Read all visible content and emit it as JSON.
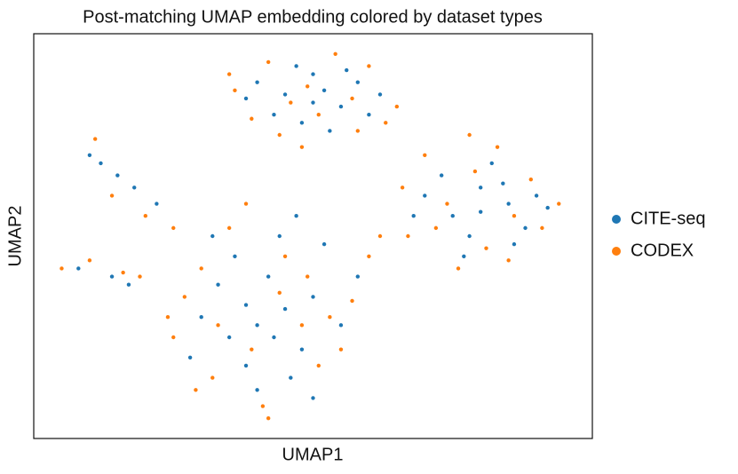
{
  "chart_data": {
    "type": "scatter",
    "title": "Post-matching UMAP embedding colored by dataset types",
    "xlabel": "UMAP1",
    "ylabel": "UMAP2",
    "xlim": [
      0,
      100
    ],
    "ylim": [
      0,
      100
    ],
    "series": [
      {
        "name": "CITE-seq",
        "color": "#1f77b4",
        "x": [
          40,
          45,
          50,
          55,
          48,
          52,
          58,
          43,
          60,
          47,
          53,
          38,
          62,
          50,
          56,
          70,
          75,
          80,
          85,
          78,
          82,
          88,
          73,
          90,
          77,
          84,
          80,
          68,
          92,
          86,
          30,
          35,
          40,
          45,
          50,
          38,
          42,
          48,
          33,
          55,
          40,
          36,
          44,
          52,
          28,
          46,
          58,
          38,
          43,
          50,
          32,
          47,
          12,
          15,
          18,
          22,
          10,
          8,
          14,
          17
        ],
        "y": [
          88,
          85,
          90,
          82,
          78,
          86,
          88,
          80,
          80,
          92,
          76,
          84,
          85,
          83,
          91,
          60,
          55,
          62,
          58,
          50,
          68,
          52,
          65,
          60,
          45,
          63,
          56,
          55,
          57,
          48,
          30,
          25,
          28,
          32,
          35,
          18,
          40,
          22,
          38,
          28,
          12,
          45,
          50,
          48,
          20,
          15,
          40,
          33,
          25,
          10,
          50,
          55,
          68,
          65,
          62,
          58,
          70,
          42,
          40,
          38
        ]
      },
      {
        "name": "CODEX",
        "color": "#ff7f0e",
        "x": [
          35,
          42,
          49,
          57,
          63,
          44,
          51,
          39,
          60,
          46,
          54,
          36,
          65,
          48,
          58,
          66,
          72,
          79,
          86,
          94,
          76,
          83,
          70,
          89,
          74,
          81,
          91,
          67,
          78,
          85,
          25,
          32,
          39,
          44,
          53,
          27,
          41,
          48,
          35,
          57,
          60,
          30,
          45,
          51,
          24,
          38,
          42,
          55,
          33,
          49,
          62,
          29,
          11,
          14,
          20,
          25,
          5,
          10,
          16,
          19
        ],
        "y": [
          90,
          93,
          87,
          84,
          78,
          75,
          80,
          79,
          92,
          83,
          95,
          86,
          82,
          72,
          76,
          62,
          52,
          66,
          55,
          58,
          42,
          72,
          70,
          64,
          58,
          47,
          52,
          50,
          75,
          44,
          25,
          15,
          22,
          36,
          30,
          35,
          8,
          28,
          52,
          34,
          45,
          42,
          45,
          18,
          30,
          58,
          5,
          22,
          28,
          40,
          50,
          12,
          74,
          60,
          55,
          52,
          42,
          44,
          41,
          40
        ]
      }
    ],
    "legend": "right"
  }
}
